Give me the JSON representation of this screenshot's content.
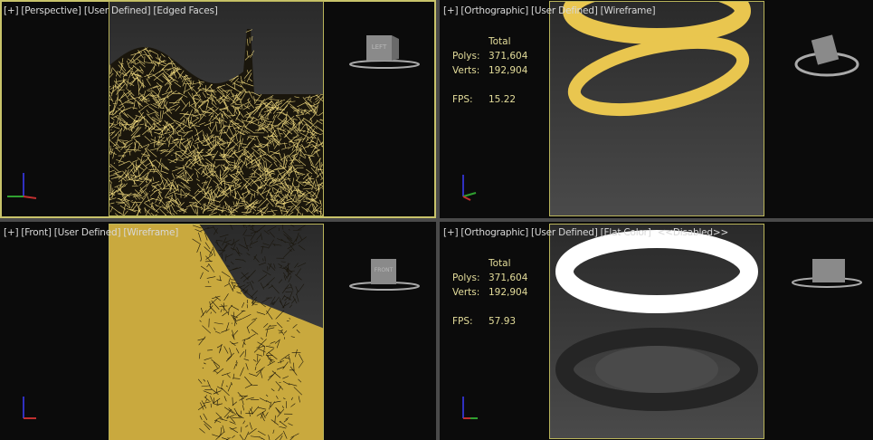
{
  "viewports": [
    {
      "labels": [
        "[+]",
        "[Perspective]",
        "[User Defined]",
        "[Edged Faces]"
      ],
      "cube_face": "LEFT",
      "axis": [
        "z",
        "y",
        "x"
      ]
    },
    {
      "labels": [
        "[+]",
        "[Orthographic]",
        "[User Defined]",
        "[Wireframe]"
      ],
      "stats": {
        "header": "Total",
        "polys_label": "Polys:",
        "polys": "371,604",
        "verts_label": "Verts:",
        "verts": "192,904",
        "fps_label": "FPS:",
        "fps": "15.22"
      },
      "axis": [
        "z",
        "x",
        "y"
      ]
    },
    {
      "labels": [
        "[+]",
        "[Front]",
        "[User Defined]",
        "[Wireframe]"
      ],
      "cube_face": "FRONT",
      "axis": [
        "z",
        "x"
      ]
    },
    {
      "labels": [
        "[+]",
        "[Orthographic]",
        "[User Defined]",
        "[Flat Color]",
        "<<Disabled>>"
      ],
      "stats": {
        "header": "Total",
        "polys_label": "Polys:",
        "polys": "371,604",
        "verts_label": "Verts:",
        "verts": "192,904",
        "fps_label": "FPS:",
        "fps": "57.93"
      },
      "axis": [
        "z",
        "x",
        "y"
      ]
    }
  ],
  "colors": {
    "wire": "#e8d27a",
    "mesh_yellow": "#e9c64f",
    "frame": "#b9b45a",
    "stats": "#e3dc9a"
  }
}
